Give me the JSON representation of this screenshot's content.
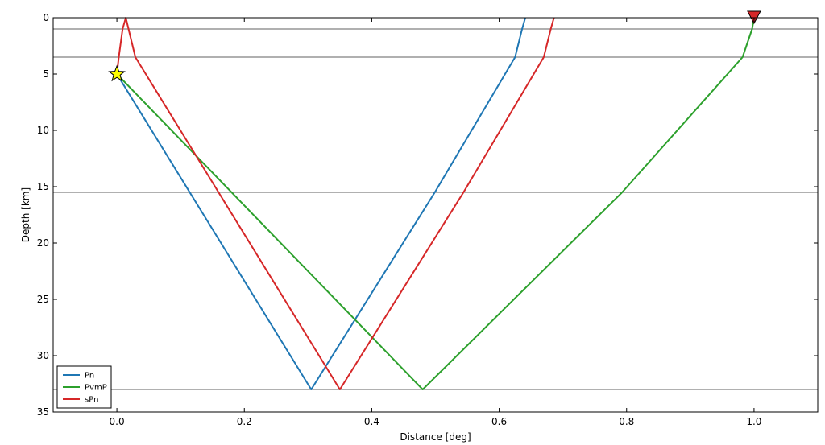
{
  "chart_data": {
    "type": "line",
    "title": "",
    "xlabel": "Distance [deg]",
    "ylabel": "Depth [km]",
    "xlim": [
      -0.1,
      1.1
    ],
    "ylim": [
      35,
      0
    ],
    "x_ticks": [
      "0.0",
      "0.2",
      "0.4",
      "0.6",
      "0.8",
      "1.0"
    ],
    "y_ticks": [
      "0",
      "5",
      "10",
      "15",
      "20",
      "25",
      "30",
      "35"
    ],
    "layer_boundaries_km": [
      1.0,
      3.5,
      15.5,
      33.0
    ],
    "source": {
      "x": 0.0,
      "depth": 5.0,
      "marker": "star",
      "color": "#ffff00"
    },
    "receiver": {
      "x": 1.0,
      "depth": 0.0,
      "marker": "triangle-down",
      "color": "#d62728"
    },
    "series": [
      {
        "name": "Pn",
        "color": "#1f77b4",
        "x": [
          0.0,
          0.305,
          0.499,
          0.625,
          0.636,
          0.641
        ],
        "y": [
          5.0,
          33.0,
          15.5,
          3.5,
          1.0,
          0.0
        ]
      },
      {
        "name": "PvmP",
        "color": "#2ca02c",
        "x": [
          0.0,
          0.48,
          0.793,
          0.982,
          0.997,
          1.0
        ],
        "y": [
          5.0,
          33.0,
          15.5,
          3.5,
          1.0,
          0.0
        ]
      },
      {
        "name": "sPn",
        "color": "#d62728",
        "x": [
          0.0,
          0.003,
          0.009,
          0.014,
          0.029,
          0.35,
          0.544,
          0.67,
          0.681,
          0.686
        ],
        "y": [
          5.0,
          3.5,
          1.0,
          0.0,
          3.5,
          33.0,
          15.5,
          3.5,
          1.0,
          0.0
        ]
      }
    ],
    "legend": {
      "position": "lower-left",
      "entries": [
        "Pn",
        "PvmP",
        "sPn"
      ]
    },
    "grid": false
  }
}
